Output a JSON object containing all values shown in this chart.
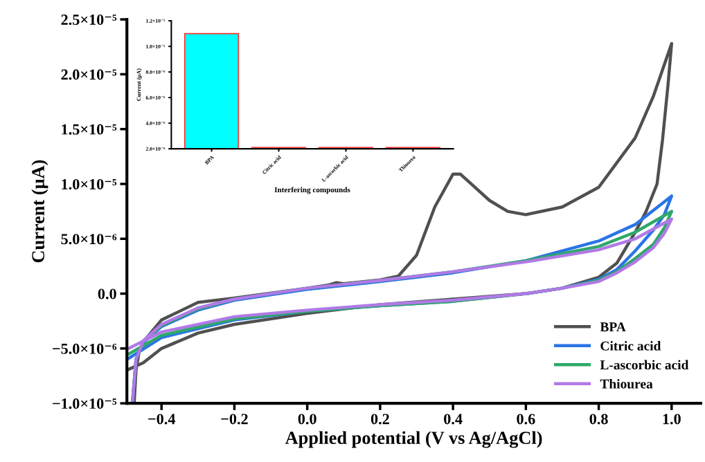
{
  "chart_data": [
    {
      "type": "line",
      "xlabel": "Applied potential (V vs Ag/AgCl)",
      "ylabel": "Current (μA)",
      "xlim": [
        -0.495,
        1.08
      ],
      "ylim": [
        -1e-05,
        2.5e-05
      ],
      "xticks": [
        {
          "value": -0.4,
          "label": "−0.4"
        },
        {
          "value": -0.2,
          "label": "−0.2"
        },
        {
          "value": 0,
          "label": "0.0"
        },
        0.2,
        0.4,
        0.6,
        0.8,
        {
          "value": 1,
          "label": "1.0"
        }
      ],
      "yticks": [
        {
          "value": -1e-05,
          "label": "−1.0×10⁻⁵"
        },
        {
          "value": -5e-06,
          "label": "−5.0×10⁻⁶"
        },
        {
          "value": 0,
          "label": "0.0"
        },
        {
          "value": 5e-06,
          "label": "5.0×10⁻⁶"
        },
        {
          "value": 1e-05,
          "label": "1.0×10⁻⁵"
        },
        {
          "value": 1.5e-05,
          "label": "1.5×10⁻⁵"
        },
        {
          "value": 2e-05,
          "label": "2.0×10⁻⁵"
        },
        {
          "value": 2.5e-05,
          "label": "2.5×10⁻⁵"
        }
      ],
      "legend": "bottom right",
      "grid": false,
      "marker": "none",
      "line_style": "solid",
      "series": [
        {
          "name": "BPA",
          "color": "#505050",
          "x": [
            -0.475,
            -0.47,
            -0.46,
            -0.44,
            -0.4,
            -0.3,
            -0.2,
            0,
            0.06,
            0.08,
            0.1,
            0.2,
            0.25,
            0.3,
            0.35,
            0.4,
            0.42,
            0.45,
            0.5,
            0.55,
            0.6,
            0.7,
            0.8,
            0.9,
            0.95,
            1.0,
            0.99,
            0.975,
            0.96,
            0.93,
            0.9,
            0.85,
            0.8,
            0.7,
            0.6,
            0.4,
            0.2,
            0,
            -0.2,
            -0.3,
            -0.4,
            -0.45,
            -0.49
          ],
          "values": [
            -1e-05,
            -7e-06,
            -5e-06,
            -4e-06,
            -2.4e-06,
            -8e-07,
            -4e-07,
            5e-07,
            8e-07,
            1e-06,
            9e-07,
            1.25e-06,
            1.6e-06,
            3.5e-06,
            7.9e-06,
            1.09e-05,
            1.09e-05,
            1e-05,
            8.5e-06,
            7.5e-06,
            7.2e-06,
            7.9e-06,
            9.7e-06,
            1.42e-05,
            1.8e-05,
            2.28e-05,
            1.9e-05,
            1.4e-05,
            1e-05,
            7.5e-06,
            5.6e-06,
            2.8e-06,
            1.5e-06,
            5e-07,
            0.0,
            -5e-07,
            -1e-06,
            -1.8e-06,
            -2.8e-06,
            -3.6e-06,
            -5e-06,
            -6.3e-06,
            -6.9e-06
          ]
        },
        {
          "name": "Citric acid",
          "color": "#2a74e6",
          "x": [
            -0.48,
            -0.47,
            -0.45,
            -0.4,
            -0.3,
            -0.2,
            0,
            0.2,
            0.4,
            0.6,
            0.8,
            0.9,
            1.0,
            0.98,
            0.95,
            0.9,
            0.85,
            0.8,
            0.7,
            0.6,
            0.4,
            0.2,
            0,
            -0.2,
            -0.4,
            -0.49
          ],
          "values": [
            -1e-05,
            -6e-06,
            -4.5e-06,
            -3e-06,
            -1.5e-06,
            -6e-07,
            4e-07,
            1.1e-06,
            1.9e-06,
            3e-06,
            4.8e-06,
            6.3e-06,
            8.9e-06,
            7.2e-06,
            5.8e-06,
            3.9e-06,
            2.2e-06,
            1.3e-06,
            5e-07,
            0.0,
            -7e-07,
            -1.1e-06,
            -1.6e-06,
            -2.4e-06,
            -4e-06,
            -5.9e-06
          ]
        },
        {
          "name": "L-ascorbic acid",
          "color": "#2ea86a",
          "x": [
            -0.48,
            -0.47,
            -0.45,
            -0.4,
            -0.3,
            -0.2,
            0,
            0.2,
            0.4,
            0.6,
            0.8,
            0.9,
            1.0,
            0.98,
            0.95,
            0.9,
            0.85,
            0.8,
            0.7,
            0.6,
            0.4,
            0.2,
            0,
            -0.2,
            -0.4,
            -0.49
          ],
          "values": [
            -1e-05,
            -6e-06,
            -4.4e-06,
            -2.9e-06,
            -1.4e-06,
            -5e-07,
            5e-07,
            1.2e-06,
            2e-06,
            3e-06,
            4.3e-06,
            5.6e-06,
            7.5e-06,
            6e-06,
            4.5e-06,
            3.2e-06,
            2e-06,
            1.2e-06,
            5e-07,
            0.0,
            -7e-07,
            -1.1e-06,
            -1.6e-06,
            -2.3e-06,
            -3.8e-06,
            -5.5e-06
          ]
        },
        {
          "name": "Thiourea",
          "color": "#b07ae6",
          "x": [
            -0.48,
            -0.47,
            -0.45,
            -0.4,
            -0.3,
            -0.2,
            0,
            0.2,
            0.4,
            0.6,
            0.8,
            0.9,
            1.0,
            0.98,
            0.95,
            0.9,
            0.85,
            0.8,
            0.7,
            0.6,
            0.4,
            0.2,
            0,
            -0.2,
            -0.4,
            -0.49
          ],
          "values": [
            -1e-05,
            -6e-06,
            -4.3e-06,
            -2.8e-06,
            -1.3e-06,
            -5e-07,
            5e-07,
            1.2e-06,
            2e-06,
            2.9e-06,
            4e-06,
            5e-06,
            6.8e-06,
            5.5e-06,
            4.2e-06,
            2.9e-06,
            1.9e-06,
            1.1e-06,
            5e-07,
            0.0,
            -6e-07,
            -1e-06,
            -1.5e-06,
            -2.1e-06,
            -3.5e-06,
            -5e-06
          ]
        }
      ]
    },
    {
      "type": "bar",
      "xlabel": "Interfering compounds",
      "ylabel": "Current (μA)",
      "categories": [
        "BPA",
        "Citric acid",
        "L-ascorbic acid",
        "Thiourea"
      ],
      "values": [
        1.1e-05,
        2.1e-06,
        2.1e-06,
        2.1e-06
      ],
      "color": "#00ffff",
      "ylim": [
        2e-06,
        1.2e-05
      ],
      "yticks": [
        {
          "value": 2e-06,
          "label": "2.0×10⁻⁶"
        },
        {
          "value": 4e-06,
          "label": "4.0×10⁻⁶"
        },
        {
          "value": 6e-06,
          "label": "6.0×10⁻⁶"
        },
        {
          "value": 8e-06,
          "label": "8.0×10⁻⁶"
        },
        {
          "value": 1e-05,
          "label": "1.0×10⁻⁵"
        },
        {
          "value": 1.2e-05,
          "label": "1.2×10⁻⁵"
        }
      ],
      "grid": false,
      "legend": false
    }
  ]
}
